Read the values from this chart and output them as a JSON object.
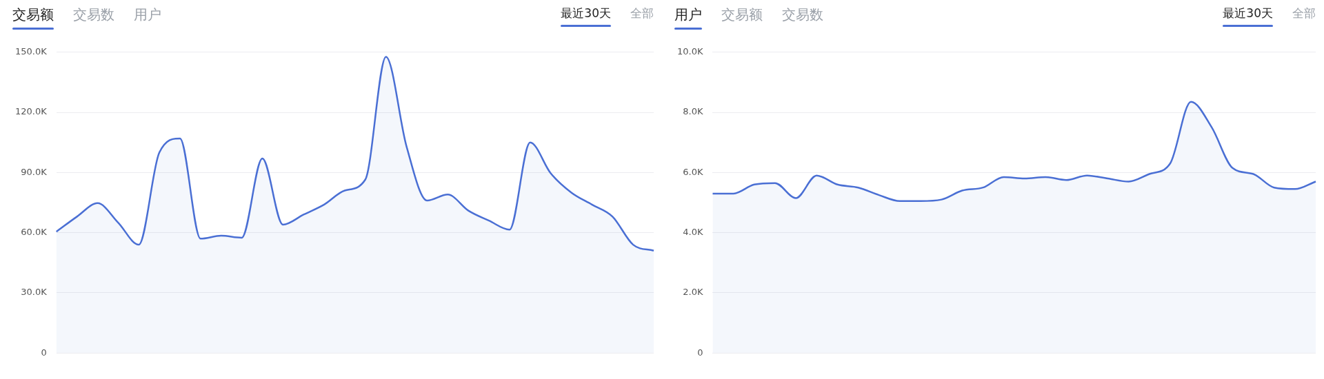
{
  "chart_data": [
    {
      "type": "area",
      "title": "交易额",
      "annotations": [
        "交易数",
        "用户",
        "最近30天",
        "全部"
      ],
      "categories": [
        null,
        null,
        null,
        null,
        null,
        null,
        null,
        null,
        null,
        null,
        null,
        null,
        null,
        null,
        null,
        null,
        null,
        null,
        null,
        null,
        null,
        null,
        null,
        null,
        null,
        null,
        null,
        null,
        null,
        null
      ],
      "series": [
        {
          "color": "#4a6fd4",
          "values": [
            60.5,
            68,
            74.7,
            65,
            54,
            100,
            107,
            57,
            58.5,
            57.5,
            97,
            64,
            69,
            74,
            81,
            86.5,
            147.7,
            103,
            76,
            79,
            71,
            66,
            61.5,
            105,
            89.6,
            80,
            74,
            68,
            54,
            51
          ]
        }
      ],
      "ylim": [
        0,
        150
      ],
      "yticks": [
        {
          "value": 0,
          "label": "0"
        },
        {
          "value": 30,
          "label": "30.0K"
        },
        {
          "value": 60,
          "label": "60.0K"
        },
        {
          "value": 90,
          "label": "90.0K"
        },
        {
          "value": 120,
          "label": "120.0K"
        },
        {
          "value": 150,
          "label": "150.0K"
        }
      ],
      "grid": "y",
      "tick_labels": "y"
    },
    {
      "type": "area",
      "title": "用户",
      "annotations": [
        "交易额",
        "交易数",
        "最近30天",
        "全部"
      ],
      "categories": [
        null,
        null,
        null,
        null,
        null,
        null,
        null,
        null,
        null,
        null,
        null,
        null,
        null,
        null,
        null,
        null,
        null,
        null,
        null,
        null,
        null,
        null,
        null,
        null,
        null,
        null,
        null,
        null,
        null,
        null
      ],
      "series": [
        {
          "color": "#4a6fd4",
          "values": [
            5.3,
            5.3,
            5.6,
            5.65,
            5.15,
            5.9,
            5.6,
            5.5,
            5.25,
            5.05,
            5.05,
            5.1,
            5.4,
            5.5,
            5.85,
            5.8,
            5.85,
            5.75,
            5.9,
            5.8,
            5.7,
            5.95,
            6.3,
            8.35,
            7.5,
            6.15,
            5.95,
            5.5,
            5.45,
            5.7
          ]
        }
      ],
      "ylim": [
        0,
        10
      ],
      "yticks": [
        {
          "value": 0,
          "label": "0"
        },
        {
          "value": 2,
          "label": "2.0K"
        },
        {
          "value": 4,
          "label": "4.0K"
        },
        {
          "value": 6,
          "label": "6.0K"
        },
        {
          "value": 8,
          "label": "8.0K"
        },
        {
          "value": 10,
          "label": "10.0K"
        }
      ],
      "grid": "y",
      "tick_labels": "y"
    }
  ]
}
